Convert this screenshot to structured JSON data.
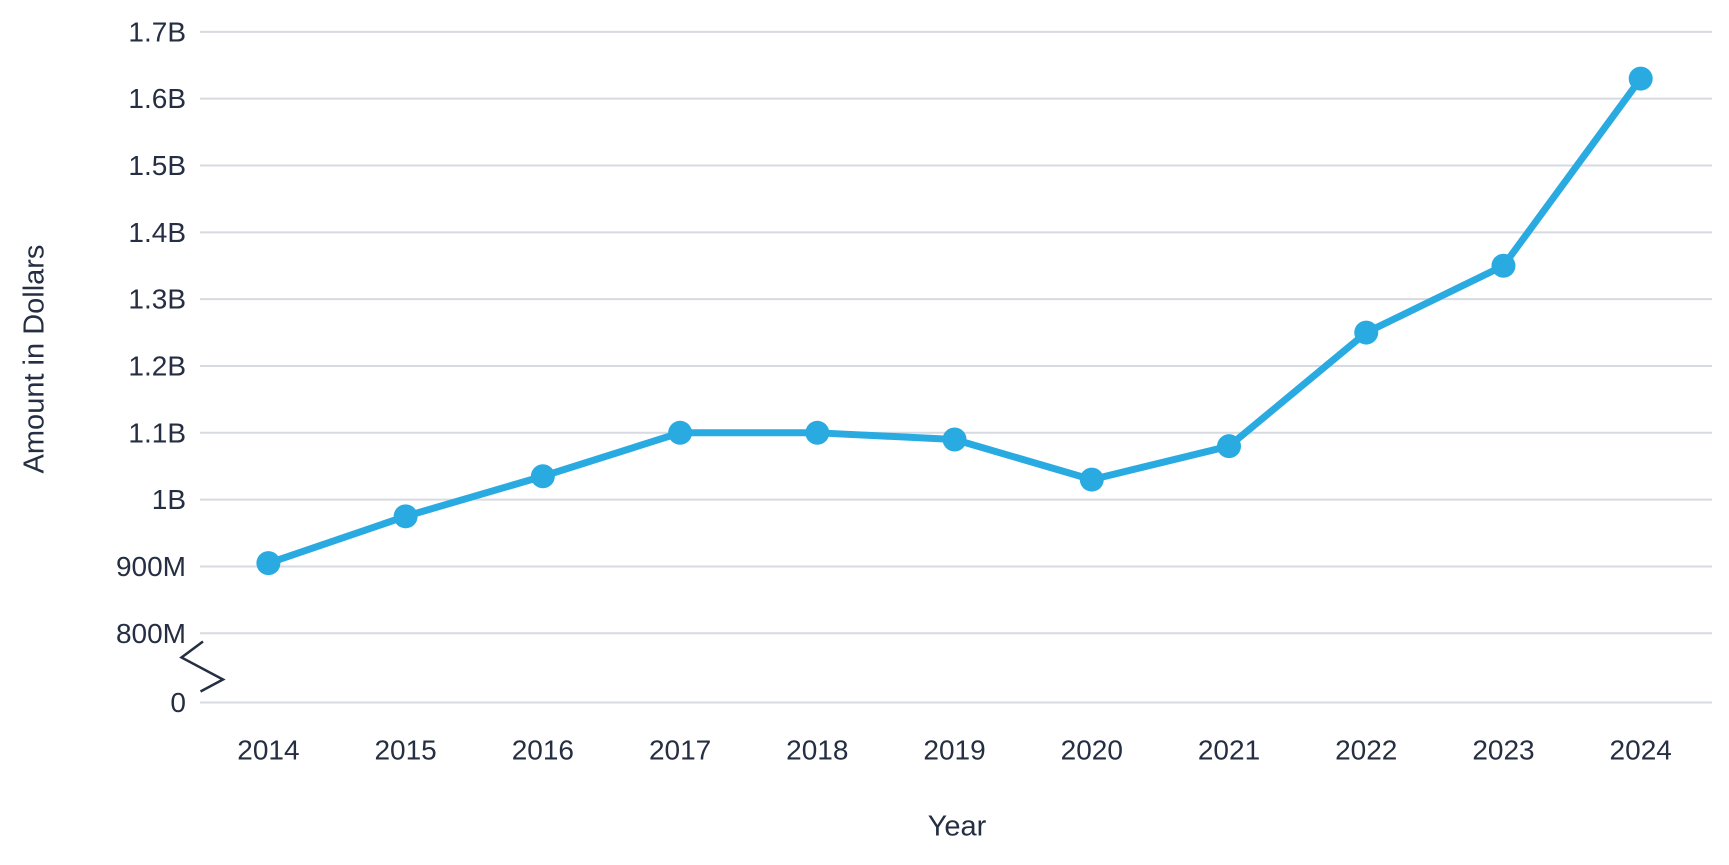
{
  "chart_data": {
    "type": "line",
    "title": "",
    "xlabel": "Year",
    "ylabel": "Amount in Dollars",
    "unit": "USD (M = millions, B = billions)",
    "categories": [
      "2014",
      "2015",
      "2016",
      "2017",
      "2018",
      "2019",
      "2020",
      "2021",
      "2022",
      "2023",
      "2024"
    ],
    "series": [
      {
        "name": "Amount",
        "values_millions": [
          905,
          975,
          1035,
          1100,
          1100,
          1090,
          1030,
          1080,
          1250,
          1350,
          1630
        ]
      }
    ],
    "y_ticks": [
      {
        "label": "0",
        "value": 0
      },
      {
        "label": "800M",
        "value": 800
      },
      {
        "label": "900M",
        "value": 900
      },
      {
        "label": "1B",
        "value": 1000
      },
      {
        "label": "1.1B",
        "value": 1100
      },
      {
        "label": "1.2B",
        "value": 1200
      },
      {
        "label": "1.3B",
        "value": 1300
      },
      {
        "label": "1.4B",
        "value": 1400
      },
      {
        "label": "1.5B",
        "value": 1500
      },
      {
        "label": "1.6B",
        "value": 1600
      },
      {
        "label": "1.7B",
        "value": 1700
      }
    ],
    "axis_break": {
      "axis": "y",
      "between_values": [
        0,
        800
      ]
    },
    "ylim_millions": [
      0,
      1700
    ],
    "grid": "horizontal-only",
    "legend": "none",
    "markers": "filled-circle",
    "colors": {
      "line": "#29abe2",
      "marker": "#29abe2",
      "text": "#252e42",
      "gridline": "#d8dae1",
      "background": "#ffffff"
    }
  }
}
